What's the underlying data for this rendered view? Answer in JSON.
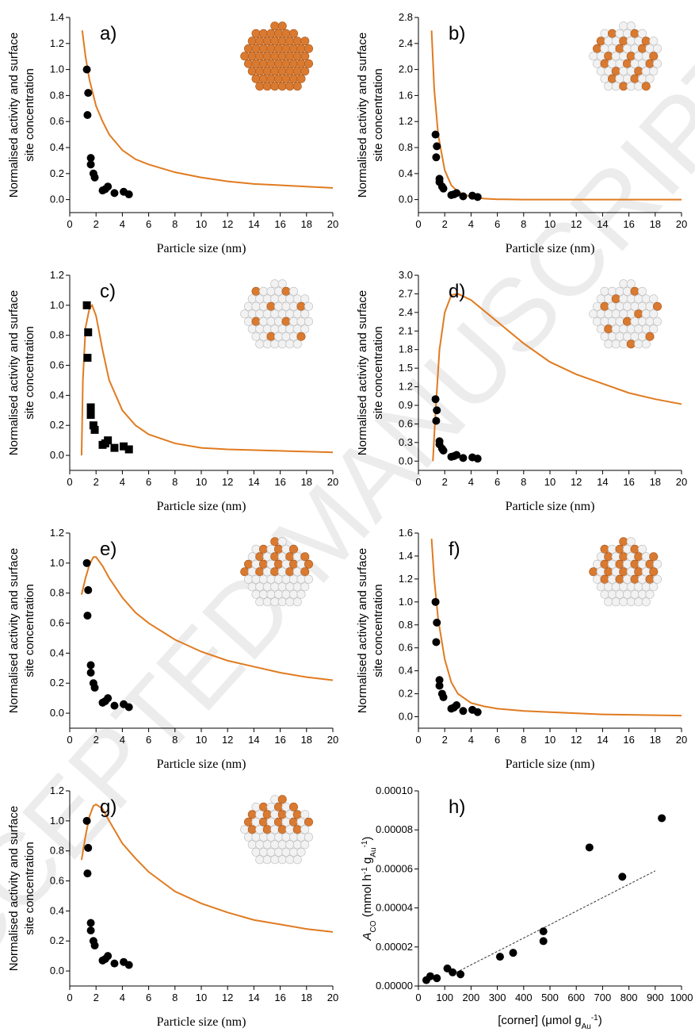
{
  "watermark": "ACCEPTED MANUSCRIPT",
  "chart_data": [
    {
      "type": "scatter",
      "label": "a)",
      "xlabel": "Particle size (nm)",
      "ylabel_lines": [
        "Normalised activity and surface",
        "site concentration"
      ],
      "xlim": [
        0,
        20
      ],
      "xticks": [
        0,
        2,
        4,
        6,
        8,
        10,
        12,
        14,
        16,
        18,
        20
      ],
      "ylim": [
        -0.1,
        1.4
      ],
      "yticks": [
        {
          "value": 0,
          "label": "0.0"
        },
        0.2,
        0.4,
        0.6,
        0.8,
        {
          "value": 1,
          "label": "1.0"
        },
        1.2,
        1.4
      ],
      "points": {
        "marker": "circle",
        "color": "#000000",
        "x": [
          1.3,
          1.4,
          1.35,
          1.6,
          1.6,
          1.8,
          1.9,
          2.5,
          2.7,
          2.9,
          3.4,
          4.1,
          4.5
        ],
        "y": [
          1.0,
          0.82,
          0.65,
          0.32,
          0.27,
          0.2,
          0.17,
          0.07,
          0.08,
          0.1,
          0.05,
          0.06,
          0.04
        ]
      },
      "curve": {
        "color": "#e07b20",
        "x": [
          0.95,
          1.2,
          1.5,
          2,
          2.5,
          3,
          4,
          5,
          6,
          8,
          10,
          12,
          14,
          16,
          18,
          20
        ],
        "y": [
          1.3,
          1.1,
          0.92,
          0.72,
          0.6,
          0.5,
          0.38,
          0.31,
          0.27,
          0.21,
          0.17,
          0.14,
          0.12,
          0.11,
          0.1,
          0.09
        ]
      }
    },
    {
      "type": "scatter",
      "label": "b)",
      "xlabel": "Particle size (nm)",
      "ylabel_lines": [
        "Normalised activity and surface",
        "site concentration"
      ],
      "xlim": [
        0,
        20
      ],
      "xticks": [
        0,
        2,
        4,
        6,
        8,
        10,
        12,
        14,
        16,
        18,
        20
      ],
      "ylim": [
        -0.2,
        2.8
      ],
      "yticks": [
        {
          "value": 0,
          "label": "0.0"
        },
        0.4,
        0.8,
        1.2,
        1.6,
        {
          "value": 2,
          "label": "2.0"
        },
        2.4,
        2.8
      ],
      "points": {
        "marker": "circle",
        "color": "#000000",
        "x": [
          1.3,
          1.4,
          1.35,
          1.6,
          1.6,
          1.8,
          1.9,
          2.5,
          2.7,
          2.9,
          3.4,
          4.1,
          4.5
        ],
        "y": [
          1.0,
          0.82,
          0.65,
          0.32,
          0.27,
          0.2,
          0.17,
          0.07,
          0.08,
          0.1,
          0.05,
          0.06,
          0.04
        ]
      },
      "curve": {
        "color": "#e07b20",
        "x": [
          1,
          1.2,
          1.5,
          2,
          2.5,
          3,
          4,
          5,
          6,
          8,
          20
        ],
        "y": [
          2.6,
          1.7,
          1.0,
          0.45,
          0.22,
          0.12,
          0.04,
          0.015,
          0.005,
          0,
          0
        ]
      }
    },
    {
      "type": "scatter",
      "label": "c)",
      "xlabel": "Particle size (nm)",
      "ylabel_lines": [
        "Normalised activity and surface",
        "site concentration"
      ],
      "xlim": [
        0,
        20
      ],
      "xticks": [
        0,
        2,
        4,
        6,
        8,
        10,
        12,
        14,
        16,
        18,
        20
      ],
      "ylim": [
        -0.1,
        1.2
      ],
      "yticks": [
        {
          "value": 0,
          "label": "0.0"
        },
        0.2,
        0.4,
        0.6,
        0.8,
        {
          "value": 1,
          "label": "1.0"
        },
        1.2
      ],
      "points": {
        "marker": "square",
        "color": "#000000",
        "x": [
          1.3,
          1.4,
          1.35,
          1.6,
          1.6,
          1.8,
          1.9,
          2.5,
          2.7,
          2.9,
          3.4,
          4.1,
          4.5
        ],
        "y": [
          1.0,
          0.82,
          0.65,
          0.32,
          0.27,
          0.2,
          0.17,
          0.07,
          0.08,
          0.1,
          0.05,
          0.06,
          0.04
        ]
      },
      "curve": {
        "color": "#e07b20",
        "x": [
          0.9,
          1.0,
          1.2,
          1.5,
          1.7,
          2,
          2.5,
          3,
          4,
          5,
          6,
          8,
          10,
          12,
          16,
          20
        ],
        "y": [
          0,
          0.5,
          0.85,
          0.98,
          1.0,
          0.93,
          0.7,
          0.5,
          0.3,
          0.2,
          0.14,
          0.08,
          0.05,
          0.04,
          0.03,
          0.02
        ]
      }
    },
    {
      "type": "scatter",
      "label": "d)",
      "xlabel": "Particle size (nm)",
      "ylabel_lines": [
        "Normalised activity and surface",
        "site concentration"
      ],
      "xlim": [
        0,
        20
      ],
      "xticks": [
        0,
        2,
        4,
        6,
        8,
        10,
        12,
        14,
        16,
        18,
        20
      ],
      "ylim": [
        -0.15,
        3.0
      ],
      "yticks": [
        {
          "value": 0,
          "label": "0.0"
        },
        0.3,
        0.6,
        0.9,
        1.2,
        1.5,
        1.8,
        2.1,
        2.4,
        2.7,
        {
          "value": 3,
          "label": "3.0"
        }
      ],
      "points": {
        "marker": "circle",
        "color": "#000000",
        "x": [
          1.3,
          1.4,
          1.35,
          1.6,
          1.6,
          1.8,
          1.9,
          2.5,
          2.7,
          2.9,
          3.4,
          4.1,
          4.5
        ],
        "y": [
          1.0,
          0.82,
          0.65,
          0.32,
          0.27,
          0.2,
          0.17,
          0.07,
          0.08,
          0.1,
          0.05,
          0.06,
          0.04
        ]
      },
      "curve": {
        "color": "#e07b20",
        "x": [
          1.1,
          1.3,
          1.6,
          2,
          2.5,
          3,
          4,
          6,
          8,
          10,
          12,
          14,
          16,
          18,
          20
        ],
        "y": [
          0,
          0.8,
          1.8,
          2.4,
          2.68,
          2.7,
          2.6,
          2.25,
          1.9,
          1.6,
          1.4,
          1.25,
          1.1,
          1.0,
          0.92
        ]
      }
    },
    {
      "type": "scatter",
      "label": "e)",
      "xlabel": "Particle size (nm)",
      "ylabel_lines": [
        "Normalised activity and surface",
        "site concentration"
      ],
      "xlim": [
        0,
        20
      ],
      "xticks": [
        0,
        2,
        4,
        6,
        8,
        10,
        12,
        14,
        16,
        18,
        20
      ],
      "ylim": [
        -0.1,
        1.2
      ],
      "yticks": [
        {
          "value": 0,
          "label": "0.0"
        },
        0.2,
        0.4,
        0.6,
        0.8,
        {
          "value": 1,
          "label": "1.0"
        },
        1.2
      ],
      "points": {
        "marker": "circle",
        "color": "#000000",
        "x": [
          1.3,
          1.4,
          1.35,
          1.6,
          1.6,
          1.8,
          1.9,
          2.5,
          2.7,
          2.9,
          3.4,
          4.1,
          4.5
        ],
        "y": [
          1.0,
          0.82,
          0.65,
          0.32,
          0.27,
          0.2,
          0.17,
          0.07,
          0.08,
          0.1,
          0.05,
          0.06,
          0.04
        ]
      },
      "curve": {
        "color": "#e07b20",
        "x": [
          0.9,
          1.2,
          1.5,
          1.8,
          2,
          2.5,
          3,
          4,
          5,
          6,
          8,
          10,
          12,
          14,
          16,
          18,
          20
        ],
        "y": [
          0.79,
          0.9,
          0.99,
          1.04,
          1.04,
          0.98,
          0.9,
          0.77,
          0.67,
          0.6,
          0.49,
          0.41,
          0.35,
          0.31,
          0.27,
          0.24,
          0.22
        ]
      }
    },
    {
      "type": "scatter",
      "label": "f)",
      "xlabel": "Particle size (nm)",
      "ylabel_lines": [
        "Normalised activity and surface",
        "site concentration"
      ],
      "xlim": [
        0,
        20
      ],
      "xticks": [
        0,
        2,
        4,
        6,
        8,
        10,
        12,
        14,
        16,
        18,
        20
      ],
      "ylim": [
        -0.1,
        1.6
      ],
      "yticks": [
        {
          "value": 0,
          "label": "0.0"
        },
        0.2,
        0.4,
        0.6,
        0.8,
        {
          "value": 1,
          "label": "1.0"
        },
        1.2,
        1.4,
        1.6
      ],
      "points": {
        "marker": "circle",
        "color": "#000000",
        "x": [
          1.3,
          1.4,
          1.35,
          1.6,
          1.6,
          1.8,
          1.9,
          2.5,
          2.7,
          2.9,
          3.4,
          4.1,
          4.5
        ],
        "y": [
          1.0,
          0.82,
          0.65,
          0.32,
          0.27,
          0.2,
          0.17,
          0.07,
          0.08,
          0.1,
          0.05,
          0.06,
          0.04
        ]
      },
      "curve": {
        "color": "#e07b20",
        "x": [
          1,
          1.2,
          1.5,
          2,
          2.5,
          3,
          4,
          5,
          6,
          8,
          10,
          14,
          20
        ],
        "y": [
          1.55,
          1.2,
          0.85,
          0.5,
          0.3,
          0.2,
          0.12,
          0.09,
          0.07,
          0.05,
          0.04,
          0.02,
          0.01
        ]
      }
    },
    {
      "type": "scatter",
      "label": "g)",
      "xlabel": "Particle size (nm)",
      "ylabel_lines": [
        "Normalised activity and surface",
        "site concentration"
      ],
      "xlim": [
        0,
        20
      ],
      "xticks": [
        0,
        2,
        4,
        6,
        8,
        10,
        12,
        14,
        16,
        18,
        20
      ],
      "ylim": [
        -0.1,
        1.2
      ],
      "yticks": [
        {
          "value": 0,
          "label": "0.0"
        },
        0.2,
        0.4,
        0.6,
        0.8,
        {
          "value": 1,
          "label": "1.0"
        },
        1.2
      ],
      "points": {
        "marker": "circle",
        "color": "#000000",
        "x": [
          1.3,
          1.4,
          1.35,
          1.6,
          1.6,
          1.8,
          1.9,
          2.5,
          2.7,
          2.9,
          3.4,
          4.1,
          4.5
        ],
        "y": [
          1.0,
          0.82,
          0.65,
          0.32,
          0.27,
          0.2,
          0.17,
          0.07,
          0.08,
          0.1,
          0.05,
          0.06,
          0.04
        ]
      },
      "curve": {
        "color": "#e07b20",
        "x": [
          0.9,
          1.2,
          1.5,
          1.8,
          2,
          2.5,
          3,
          4,
          5,
          6,
          8,
          10,
          12,
          14,
          16,
          18,
          20
        ],
        "y": [
          0.74,
          0.9,
          1.03,
          1.1,
          1.11,
          1.08,
          1.0,
          0.85,
          0.75,
          0.66,
          0.53,
          0.45,
          0.39,
          0.34,
          0.31,
          0.28,
          0.26
        ]
      }
    },
    {
      "type": "scatter",
      "label": "h)",
      "xlabel": [
        "[corner] (μmol g",
        "Au",
        "-1",
        ")"
      ],
      "xlabel_format": [
        "",
        "sub",
        "sup",
        ""
      ],
      "ylabel": [
        "A",
        "CO",
        " (mmol h",
        "-1",
        " g",
        "Au",
        "-1",
        ")"
      ],
      "ylabel_format": [
        "italic",
        "sub",
        "",
        "sup",
        "",
        "sub",
        "sup",
        ""
      ],
      "xlim": [
        0,
        1000
      ],
      "xticks": [
        0,
        100,
        200,
        300,
        400,
        500,
        600,
        700,
        800,
        900,
        1000
      ],
      "ylim": [
        0,
        0.0001
      ],
      "yticks": [
        {
          "value": 0,
          "label": "0.00000"
        },
        {
          "value": 2e-05,
          "label": "0.00002"
        },
        {
          "value": 4e-05,
          "label": "0.00004"
        },
        {
          "value": 6e-05,
          "label": "0.00006"
        },
        {
          "value": 8e-05,
          "label": "0.00008"
        },
        {
          "value": 0.0001,
          "label": "0.00010"
        }
      ],
      "points": {
        "marker": "circle",
        "color": "#000000",
        "x": [
          30,
          45,
          70,
          110,
          130,
          160,
          310,
          360,
          475,
          475,
          650,
          775,
          925
        ],
        "y": [
          3e-06,
          5e-06,
          4e-06,
          9e-06,
          7e-06,
          6e-06,
          1.5e-05,
          1.7e-05,
          2.3e-05,
          2.8e-05,
          7.1e-05,
          5.6e-05,
          8.6e-05
        ]
      },
      "curve": {
        "color": "#333333",
        "dashed": true,
        "x": [
          130,
          900
        ],
        "y": [
          6e-06,
          5.9e-05
        ]
      }
    }
  ]
}
